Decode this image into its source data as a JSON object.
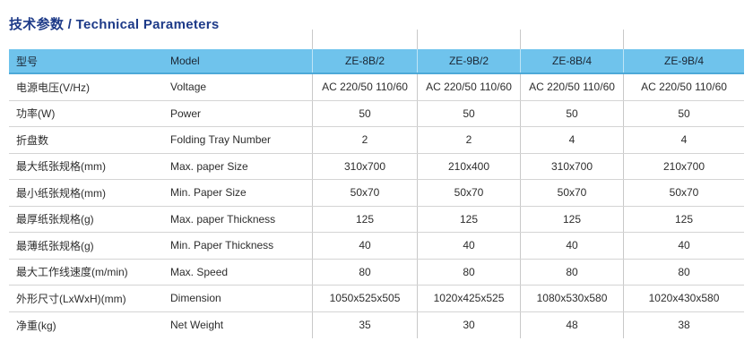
{
  "title": "技术参数 / Technical Parameters",
  "colors": {
    "title": "#1d3a88",
    "header_bg": "#6fc3ec",
    "header_border": "#4da9d8",
    "header_text": "#1b2633",
    "body_text": "#2d2d2d",
    "horizontal_line": "#d4d4d4",
    "vertical_line": "#c9c9c9"
  },
  "table": {
    "header": {
      "label_cn": "型号",
      "label_en": "Model",
      "models": [
        "ZE-8B/2",
        "ZE-9B/2",
        "ZE-8B/4",
        "ZE-9B/4"
      ]
    },
    "rows": [
      {
        "cn": "电源电压(V/Hz)",
        "en": "Voltage",
        "values": [
          "AC 220/50 110/60",
          "AC 220/50 110/60",
          "AC 220/50 110/60",
          "AC 220/50 110/60"
        ]
      },
      {
        "cn": "功率(W)",
        "en": "Power",
        "values": [
          "50",
          "50",
          "50",
          "50"
        ]
      },
      {
        "cn": "折盘数",
        "en": "Folding Tray Number",
        "values": [
          "2",
          "2",
          "4",
          "4"
        ]
      },
      {
        "cn": "最大纸张规格(mm)",
        "en": "Max. paper Size",
        "values": [
          "310x700",
          "210x400",
          "310x700",
          "210x700"
        ]
      },
      {
        "cn": "最小纸张规格(mm)",
        "en": "Min. Paper Size",
        "values": [
          "50x70",
          "50x70",
          "50x70",
          "50x70"
        ]
      },
      {
        "cn": "最厚纸张规格(g)",
        "en": "Max. paper Thickness",
        "values": [
          "125",
          "125",
          "125",
          "125"
        ]
      },
      {
        "cn": "最薄纸张规格(g)",
        "en": "Min. Paper Thickness",
        "values": [
          "40",
          "40",
          "40",
          "40"
        ]
      },
      {
        "cn": "最大工作线速度(m/min)",
        "en": "Max. Speed",
        "values": [
          "80",
          "80",
          "80",
          "80"
        ]
      },
      {
        "cn": "外形尺寸(LxWxH)(mm)",
        "en": "Dimension",
        "values": [
          "1050x525x505",
          "1020x425x525",
          "1080x530x580",
          "1020x430x580"
        ]
      },
      {
        "cn": "净重(kg)",
        "en": "Net Weight",
        "values": [
          "35",
          "30",
          "48",
          "38"
        ]
      }
    ]
  }
}
